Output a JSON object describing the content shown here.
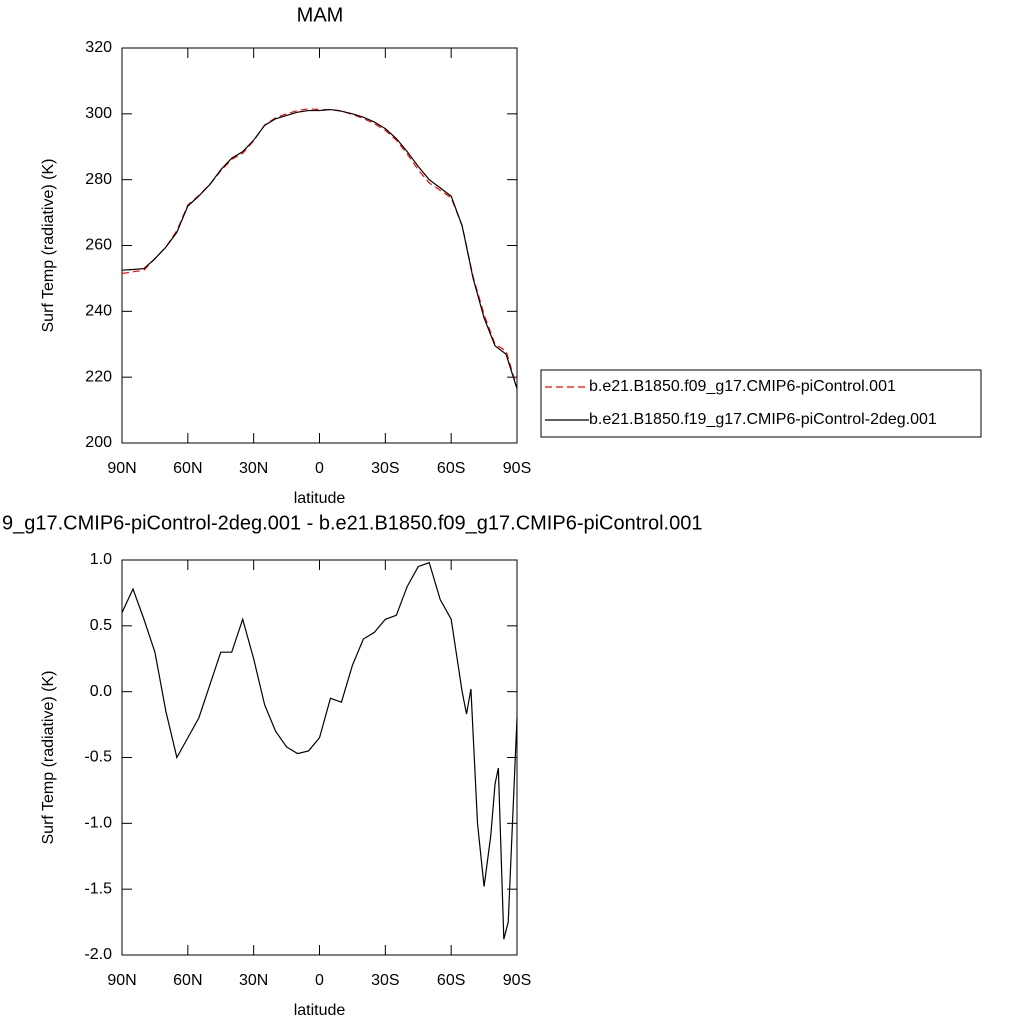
{
  "chart_data": [
    {
      "type": "line",
      "title": "MAM",
      "xlabel": "latitude",
      "ylabel": "Surf Temp (radiative) (K)",
      "x": [
        90,
        85,
        80,
        75,
        70,
        65,
        60,
        55,
        50,
        45,
        40,
        35,
        30,
        25,
        20,
        15,
        10,
        5,
        0,
        -5,
        -10,
        -15,
        -20,
        -25,
        -30,
        -35,
        -40,
        -45,
        -50,
        -55,
        -60,
        -65,
        -70,
        -75,
        -80,
        -85,
        -90
      ],
      "xlim": [
        90,
        -90
      ],
      "xticks": [
        {
          "value": 90,
          "label": "90N"
        },
        {
          "value": 60,
          "label": "60N"
        },
        {
          "value": 30,
          "label": "30N"
        },
        0,
        {
          "value": -30,
          "label": "30S"
        },
        {
          "value": -60,
          "label": "60S"
        },
        {
          "value": -90,
          "label": "90S"
        }
      ],
      "ylim": [
        200,
        320
      ],
      "yticks": [
        200,
        220,
        240,
        260,
        280,
        300,
        320
      ],
      "legend": "right",
      "series": [
        {
          "name": "b.e21.B1850.f09_g17.CMIP6-piControl.001",
          "color": "#ff0000",
          "dash": true,
          "values": [
            251.5,
            252,
            252.5,
            256,
            259.5,
            264.5,
            272.3,
            275.2,
            278.5,
            282.7,
            286.2,
            288,
            291.8,
            296.6,
            298.8,
            300,
            301,
            301.5,
            301.3,
            301.3,
            300.9,
            299.8,
            298.6,
            297,
            295,
            292,
            287.8,
            283,
            279,
            276.8,
            274.5,
            266,
            250.5,
            239,
            230,
            228,
            216.7
          ]
        },
        {
          "name": "b.e21.B1850.f19_g17.CMIP6-piControl-2deg.001",
          "color": "#000000",
          "dash": false,
          "values": [
            252.5,
            252.7,
            253,
            256,
            259.5,
            264,
            272,
            275,
            278.5,
            283,
            286.5,
            288.5,
            292,
            296.5,
            298.5,
            299.5,
            300.5,
            301,
            301,
            301.3,
            300.8,
            300,
            299,
            297.5,
            295.5,
            292.5,
            288.5,
            284,
            280,
            277.5,
            275,
            266,
            250,
            238,
            229.5,
            227,
            216.5
          ]
        }
      ]
    },
    {
      "type": "line",
      "title": "9_g17.CMIP6-piControl-2deg.001 - b.e21.B1850.f09_g17.CMIP6-piControl.001",
      "xlabel": "latitude",
      "ylabel": "Surf Temp (radiative) (K)",
      "x": [
        90,
        85,
        80,
        75,
        70,
        65,
        60,
        55,
        50,
        45,
        40,
        35,
        30,
        25,
        20,
        15,
        10,
        5,
        0,
        -5,
        -10,
        -15,
        -20,
        -25,
        -30,
        -35,
        -40,
        -45,
        -50,
        -55,
        -60,
        -65,
        -67,
        -69,
        -72,
        -75,
        -78,
        -80,
        -81.5,
        -84,
        -86,
        -90
      ],
      "xlim": [
        90,
        -90
      ],
      "xticks": [
        {
          "value": 90,
          "label": "90N"
        },
        {
          "value": 60,
          "label": "60N"
        },
        {
          "value": 30,
          "label": "30N"
        },
        0,
        {
          "value": -30,
          "label": "30S"
        },
        {
          "value": -60,
          "label": "60S"
        },
        {
          "value": -90,
          "label": "90S"
        }
      ],
      "ylim": [
        -2.0,
        1.0
      ],
      "yticks": [
        {
          "value": -2.0,
          "label": "-2.0"
        },
        {
          "value": -1.5,
          "label": "-1.5"
        },
        {
          "value": -1.0,
          "label": "-1.0"
        },
        {
          "value": -0.5,
          "label": "-0.5"
        },
        {
          "value": 0.0,
          "label": "0.0"
        },
        {
          "value": 0.5,
          "label": "0.5"
        },
        {
          "value": 1.0,
          "label": "1.0"
        }
      ],
      "series": [
        {
          "color": "#000000",
          "dash": false,
          "values": [
            0.6,
            0.78,
            0.55,
            0.3,
            -0.15,
            -0.5,
            -0.35,
            -0.2,
            0.05,
            0.3,
            0.3,
            0.55,
            0.25,
            -0.1,
            -0.3,
            -0.42,
            -0.47,
            -0.45,
            -0.35,
            -0.05,
            -0.08,
            0.2,
            0.4,
            0.45,
            0.55,
            0.58,
            0.8,
            0.95,
            0.98,
            0.7,
            0.55,
            0.0,
            -0.17,
            0.02,
            -1.0,
            -1.48,
            -1.1,
            -0.7,
            -0.58,
            -1.88,
            -1.75,
            -0.2
          ]
        }
      ]
    }
  ]
}
